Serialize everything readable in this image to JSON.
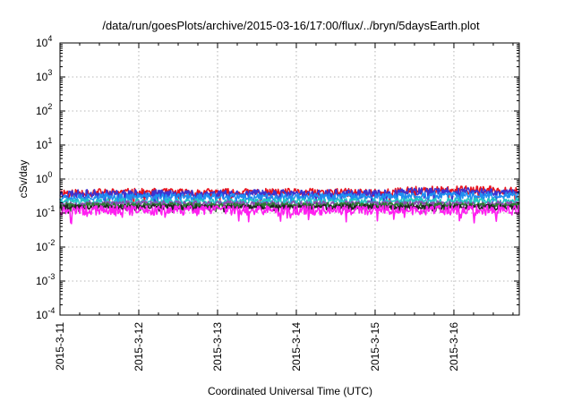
{
  "chart_data": {
    "type": "line",
    "title": "/data/run/goesPlots/archive/2015-03-16/17:00/flux/../bryn/5daysEarth.plot",
    "xlabel": "Coordinated Universal Time (UTC)",
    "ylabel": "cSv/day",
    "yscale": "log",
    "ylim": [
      0.0001,
      10000
    ],
    "xlim_days": [
      0,
      5.83
    ],
    "ytick_labels": [
      {
        "base": "10",
        "exp": "-4"
      },
      {
        "base": "10",
        "exp": "-3"
      },
      {
        "base": "10",
        "exp": "-2"
      },
      {
        "base": "10",
        "exp": "-1"
      },
      {
        "base": "10",
        "exp": "0"
      },
      {
        "base": "10",
        "exp": "1"
      },
      {
        "base": "10",
        "exp": "2"
      },
      {
        "base": "10",
        "exp": "3"
      },
      {
        "base": "10",
        "exp": "4"
      }
    ],
    "xtick_labels": [
      "2015-3-11",
      "2015-3-12",
      "2015-3-13",
      "2015-3-14",
      "2015-3-15",
      "2015-3-16"
    ],
    "grid": true,
    "series": [
      {
        "color": "#e8141e",
        "level": 0.4,
        "late_level": 0.47,
        "amp": 0.12,
        "seed": 11
      },
      {
        "color": "#3a34d2",
        "level": 0.37,
        "late_level": 0.42,
        "amp": 0.12,
        "seed": 23
      },
      {
        "color": "#1f8ff0",
        "level": 0.3,
        "late_level": 0.33,
        "amp": 0.1,
        "seed": 37
      },
      {
        "color": "#22c6c2",
        "level": 0.22,
        "late_level": 0.23,
        "amp": 0.08,
        "seed": 41
      },
      {
        "color": "#8a4db0",
        "level": 0.19,
        "late_level": 0.19,
        "amp": 0.08,
        "seed": 53
      },
      {
        "color": "#2e7d32",
        "level": 0.17,
        "late_level": 0.17,
        "amp": 0.07,
        "seed": 67
      },
      {
        "color": "#222222",
        "level": 0.15,
        "late_level": 0.15,
        "amp": 0.07,
        "seed": 79
      },
      {
        "color": "#ff1ff0",
        "level": 0.12,
        "late_level": 0.12,
        "amp": 0.14,
        "seed": 97
      }
    ]
  }
}
